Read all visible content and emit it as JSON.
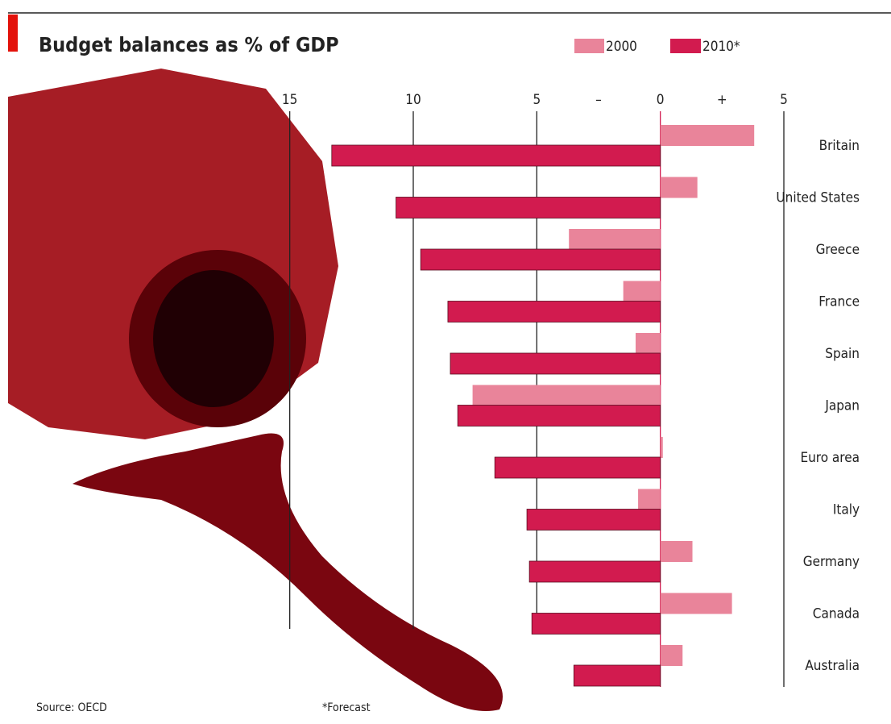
{
  "chart_data": {
    "type": "hbar",
    "title": "Budget balances as % of GDP",
    "categories": [
      "Britain",
      "United States",
      "Greece",
      "France",
      "Spain",
      "Japan",
      "Euro area",
      "Italy",
      "Germany",
      "Canada",
      "Australia"
    ],
    "series": [
      {
        "name": "2000",
        "color": "#e9849a",
        "values": [
          3.8,
          1.5,
          -3.7,
          -1.5,
          -1.0,
          -7.6,
          0.1,
          -0.9,
          1.3,
          2.9,
          0.9
        ]
      },
      {
        "name": "2010*",
        "color": "#d21b4f",
        "values": [
          -13.3,
          -10.7,
          -9.7,
          -8.6,
          -8.5,
          -8.2,
          -6.7,
          -5.4,
          -5.3,
          -5.2,
          -3.5
        ]
      }
    ],
    "xlim": [
      -16,
      5
    ],
    "xticks": [
      {
        "value": -15,
        "label": "15"
      },
      {
        "value": -10,
        "label": "10"
      },
      {
        "value": -5,
        "label": "5"
      },
      0,
      5
    ],
    "negative_label": "–",
    "positive_label": "+",
    "source": "Source: OECD",
    "note": "*Forecast",
    "grid": true
  }
}
